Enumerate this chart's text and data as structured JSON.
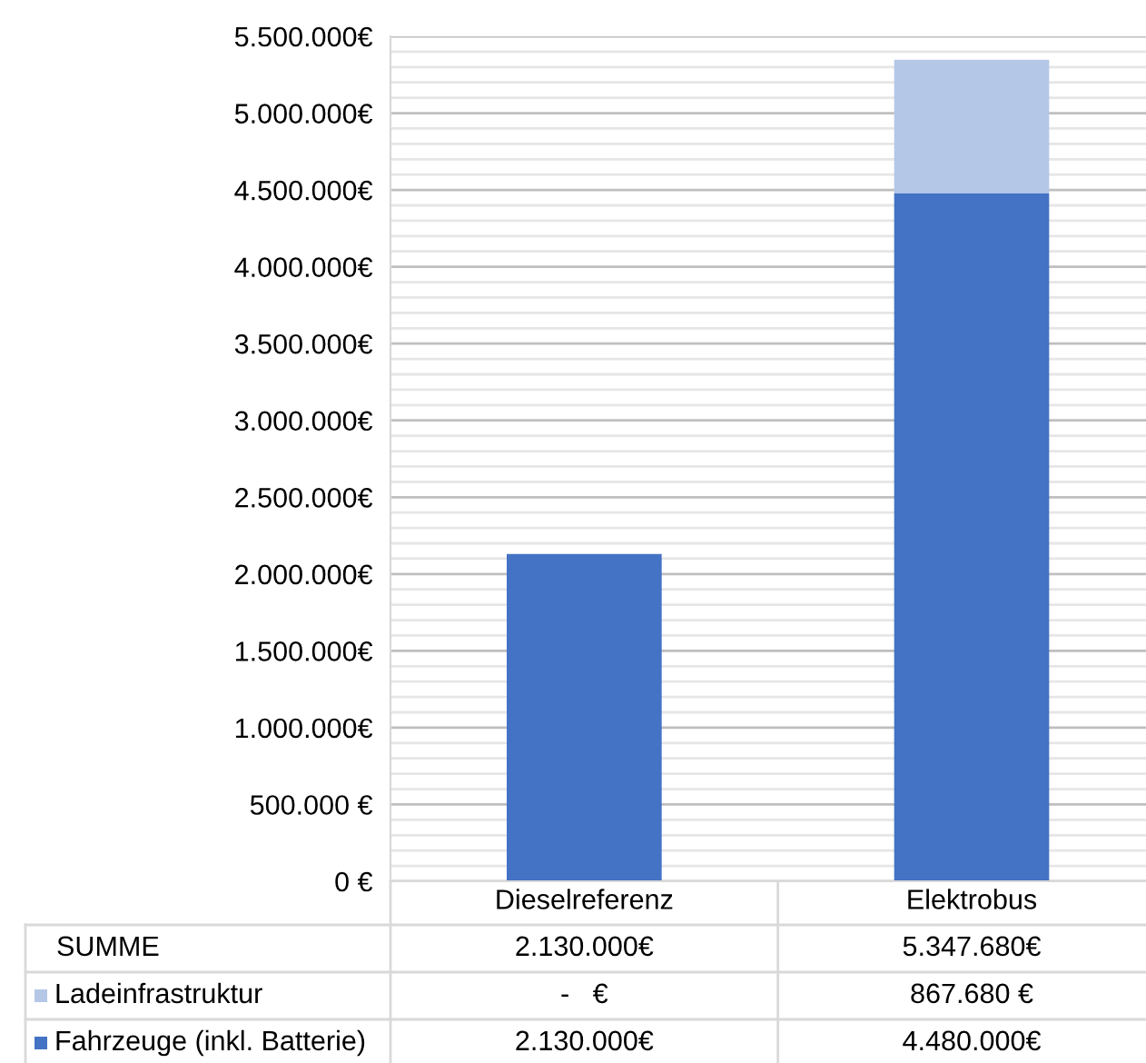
{
  "chart_data": {
    "type": "bar",
    "stacked": true,
    "categories": [
      "Dieselreferenz",
      "Elektrobus"
    ],
    "series": [
      {
        "name": "Fahrzeuge (inkl. Batterie)",
        "color": "#4472c4",
        "values": [
          2130000,
          4480000
        ],
        "value_labels": [
          "2.130.000€",
          "4.480.000€"
        ]
      },
      {
        "name": "Ladeinfrastruktur",
        "color": "#b4c7e7",
        "values": [
          0,
          867680
        ],
        "value_labels": [
          "-   €",
          "867.680 €"
        ]
      }
    ],
    "totals": [
      "2.130.000€",
      "5.347.680€"
    ],
    "annotations": [
      "SUMME"
    ],
    "ylim": [
      0,
      5500000
    ],
    "yticks": [
      {
        "value": 0,
        "label": "0 €"
      },
      {
        "value": 100000,
        "label": null
      },
      {
        "value": 200000,
        "label": null
      },
      {
        "value": 300000,
        "label": null
      },
      {
        "value": 400000,
        "label": null
      },
      {
        "value": 500000,
        "label": "500.000 €"
      },
      {
        "value": 600000,
        "label": null
      },
      {
        "value": 700000,
        "label": null
      },
      {
        "value": 800000,
        "label": null
      },
      {
        "value": 900000,
        "label": null
      },
      {
        "value": 1000000,
        "label": "1.000.000€"
      },
      {
        "value": 1100000,
        "label": null
      },
      {
        "value": 1200000,
        "label": null
      },
      {
        "value": 1300000,
        "label": null
      },
      {
        "value": 1400000,
        "label": null
      },
      {
        "value": 1500000,
        "label": "1.500.000€"
      },
      {
        "value": 1600000,
        "label": null
      },
      {
        "value": 1700000,
        "label": null
      },
      {
        "value": 1800000,
        "label": null
      },
      {
        "value": 1900000,
        "label": null
      },
      {
        "value": 2000000,
        "label": "2.000.000€"
      },
      {
        "value": 2100000,
        "label": null
      },
      {
        "value": 2200000,
        "label": null
      },
      {
        "value": 2300000,
        "label": null
      },
      {
        "value": 2400000,
        "label": null
      },
      {
        "value": 2500000,
        "label": "2.500.000€"
      },
      {
        "value": 2600000,
        "label": null
      },
      {
        "value": 2700000,
        "label": null
      },
      {
        "value": 2800000,
        "label": null
      },
      {
        "value": 2900000,
        "label": null
      },
      {
        "value": 3000000,
        "label": "3.000.000€"
      },
      {
        "value": 3100000,
        "label": null
      },
      {
        "value": 3200000,
        "label": null
      },
      {
        "value": 3300000,
        "label": null
      },
      {
        "value": 3400000,
        "label": null
      },
      {
        "value": 3500000,
        "label": "3.500.000€"
      },
      {
        "value": 3600000,
        "label": null
      },
      {
        "value": 3700000,
        "label": null
      },
      {
        "value": 3800000,
        "label": null
      },
      {
        "value": 3900000,
        "label": null
      },
      {
        "value": 4000000,
        "label": "4.000.000€"
      },
      {
        "value": 4100000,
        "label": null
      },
      {
        "value": 4200000,
        "label": null
      },
      {
        "value": 4300000,
        "label": null
      },
      {
        "value": 4400000,
        "label": null
      },
      {
        "value": 4500000,
        "label": "4.500.000€"
      },
      {
        "value": 4600000,
        "label": null
      },
      {
        "value": 4700000,
        "label": null
      },
      {
        "value": 4800000,
        "label": null
      },
      {
        "value": 4900000,
        "label": null
      },
      {
        "value": 5000000,
        "label": "5.000.000€"
      },
      {
        "value": 5100000,
        "label": null
      },
      {
        "value": 5200000,
        "label": null
      },
      {
        "value": 5300000,
        "label": null
      },
      {
        "value": 5400000,
        "label": null
      },
      {
        "value": 5500000,
        "label": "5.500.000€"
      }
    ],
    "grid": "y",
    "legend": "bottom"
  }
}
